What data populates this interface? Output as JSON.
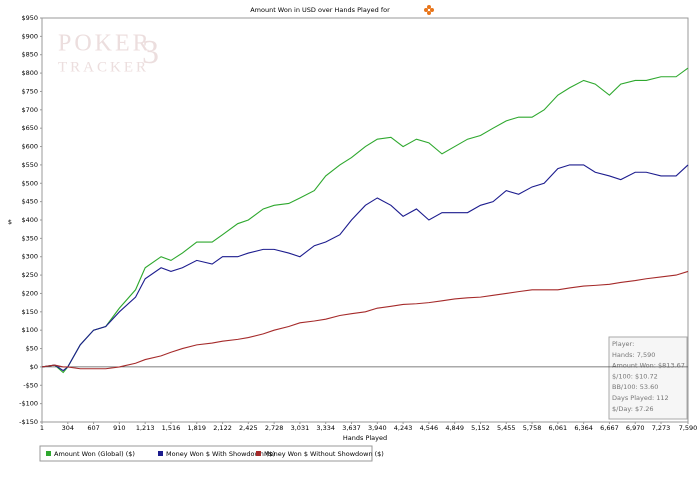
{
  "chart_data": {
    "type": "line",
    "title": "Amount Won in USD over Hands Played for",
    "watermark": [
      "POKER",
      "TRACKER",
      "3"
    ],
    "x_label": "Hands Played",
    "y_label": "$",
    "x": [
      1,
      150,
      250,
      304,
      450,
      607,
      750,
      910,
      1100,
      1213,
      1400,
      1516,
      1650,
      1819,
      2000,
      2122,
      2300,
      2425,
      2600,
      2728,
      2900,
      3031,
      3200,
      3334,
      3500,
      3637,
      3800,
      3940,
      4100,
      4243,
      4400,
      4546,
      4700,
      4849,
      5000,
      5152,
      5300,
      5455,
      5600,
      5758,
      5900,
      6061,
      6200,
      6364,
      6500,
      6667,
      6800,
      6970,
      7100,
      7273,
      7450,
      7590
    ],
    "series": [
      {
        "name": "Amount Won (Global) ($)",
        "color": "#2ea82e",
        "values": [
          0,
          5,
          -15,
          0,
          60,
          100,
          110,
          160,
          210,
          270,
          300,
          290,
          310,
          340,
          340,
          360,
          390,
          400,
          430,
          440,
          445,
          460,
          480,
          520,
          550,
          570,
          600,
          620,
          625,
          600,
          620,
          610,
          580,
          600,
          620,
          630,
          650,
          670,
          680,
          680,
          700,
          740,
          760,
          780,
          770,
          740,
          770,
          780,
          780,
          790,
          790,
          813.67
        ]
      },
      {
        "name": "Money Won $ With Showdown ($)",
        "color": "#1c1c8e",
        "values": [
          0,
          5,
          -10,
          0,
          60,
          100,
          110,
          150,
          190,
          240,
          270,
          260,
          270,
          290,
          280,
          300,
          300,
          310,
          320,
          320,
          310,
          300,
          330,
          340,
          360,
          400,
          440,
          460,
          440,
          410,
          430,
          400,
          420,
          420,
          420,
          440,
          450,
          480,
          470,
          490,
          500,
          540,
          550,
          550,
          530,
          520,
          510,
          530,
          530,
          520,
          520,
          550
        ]
      },
      {
        "name": "Money Won $ Without Showdown ($)",
        "color": "#a52a2a",
        "values": [
          0,
          5,
          0,
          0,
          -5,
          -5,
          -5,
          0,
          10,
          20,
          30,
          40,
          50,
          60,
          65,
          70,
          75,
          80,
          90,
          100,
          110,
          120,
          125,
          130,
          140,
          145,
          150,
          160,
          165,
          170,
          172,
          175,
          180,
          185,
          188,
          190,
          195,
          200,
          205,
          210,
          210,
          210,
          215,
          220,
          222,
          225,
          230,
          235,
          240,
          245,
          250,
          260
        ]
      }
    ],
    "xlim": [
      1,
      7590
    ],
    "xticks": [
      1,
      304,
      607,
      910,
      {
        "value": 1213,
        "label": "1,213"
      },
      {
        "value": 1516,
        "label": "1,516"
      },
      {
        "value": 1819,
        "label": "1,819"
      },
      {
        "value": 2122,
        "label": "2,122"
      },
      {
        "value": 2425,
        "label": "2,425"
      },
      {
        "value": 2728,
        "label": "2,728"
      },
      {
        "value": 3031,
        "label": "3,031"
      },
      {
        "value": 3334,
        "label": "3,334"
      },
      {
        "value": 3637,
        "label": "3,637"
      },
      {
        "value": 3940,
        "label": "3,940"
      },
      {
        "value": 4243,
        "label": "4,243"
      },
      {
        "value": 4546,
        "label": "4,546"
      },
      {
        "value": 4849,
        "label": "4,849"
      },
      {
        "value": 5152,
        "label": "5,152"
      },
      {
        "value": 5455,
        "label": "5,455"
      },
      {
        "value": 5758,
        "label": "5,758"
      },
      {
        "value": 6061,
        "label": "6,061"
      },
      {
        "value": 6364,
        "label": "6,364"
      },
      {
        "value": 6667,
        "label": "6,667"
      },
      {
        "value": 6970,
        "label": "6,970"
      },
      {
        "value": 7273,
        "label": "7,273"
      },
      {
        "value": 7590,
        "label": "7,590"
      }
    ],
    "ylim": [
      -150,
      950
    ],
    "yticks": [
      {
        "value": 950,
        "label": "$950"
      },
      {
        "value": 900,
        "label": "$900"
      },
      {
        "value": 850,
        "label": "$850"
      },
      {
        "value": 800,
        "label": "$800"
      },
      {
        "value": 750,
        "label": "$750"
      },
      {
        "value": 700,
        "label": "$700"
      },
      {
        "value": 650,
        "label": "$650"
      },
      {
        "value": 600,
        "label": "$600"
      },
      {
        "value": 550,
        "label": "$550"
      },
      {
        "value": 500,
        "label": "$500"
      },
      {
        "value": 450,
        "label": "$450"
      },
      {
        "value": 400,
        "label": "$400"
      },
      {
        "value": 350,
        "label": "$350"
      },
      {
        "value": 300,
        "label": "$300"
      },
      {
        "value": 250,
        "label": "$250"
      },
      {
        "value": 200,
        "label": "$200"
      },
      {
        "value": 150,
        "label": "$150"
      },
      {
        "value": 100,
        "label": "$100"
      },
      {
        "value": 50,
        "label": "$50"
      },
      {
        "value": 0,
        "label": "$0"
      },
      {
        "value": -50,
        "label": "-$50"
      },
      {
        "value": -100,
        "label": "-$100"
      },
      {
        "value": -150,
        "label": "-$150"
      }
    ],
    "grid": false,
    "info_box": [
      "Player:",
      "Hands: 7,590",
      "Amount Won: $813.67",
      "$/100: $10.72",
      "BB/100: 53.60",
      "Days Played: 112",
      "$/Day: $7.26"
    ]
  }
}
